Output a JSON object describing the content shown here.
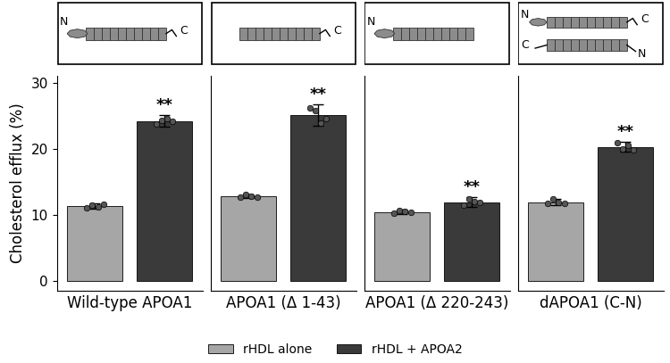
{
  "chart_data": [
    {
      "type": "bar",
      "xlabel": "Wild-type APOA1",
      "ylabel": "Cholesterol efflux (%)",
      "categories": [
        null
      ],
      "ylim": [
        -1.5,
        31
      ],
      "yticks": [
        0,
        10,
        20,
        30
      ],
      "tick_labels": "y",
      "legend": "lower center",
      "schematic": [
        [
          "N",
          "C"
        ]
      ],
      "series": [
        {
          "name": "rHDL alone",
          "color": "#a6a6a6",
          "values": [
            11.3
          ],
          "errors": [
            0.4
          ],
          "points": [
            [
              11.0,
              11.5,
              11.2,
              11.6
            ]
          ]
        },
        {
          "name": "rHDL + APOA2",
          "color": "#3a3a3a",
          "values": [
            24.2
          ],
          "errors": [
            0.9
          ],
          "points": [
            [
              23.7,
              24.3,
              24.6,
              24.2
            ]
          ]
        }
      ],
      "annotations": [
        {
          "text": "**",
          "series": "rHDL + APOA2"
        }
      ]
    },
    {
      "type": "bar",
      "xlabel": "APOA1 (Δ 1-43)",
      "categories": [
        null
      ],
      "ylim": [
        -1.5,
        31
      ],
      "yticks": [
        0,
        10,
        20,
        30
      ],
      "tick_labels": false,
      "schematic": [
        [
          null,
          "C"
        ]
      ],
      "series": [
        {
          "name": "rHDL alone",
          "color": "#a6a6a6",
          "values": [
            12.8
          ],
          "errors": [
            0.3
          ],
          "points": [
            [
              12.6,
              13.1,
              12.8,
              12.7
            ]
          ]
        },
        {
          "name": "rHDL + APOA2",
          "color": "#3a3a3a",
          "values": [
            25.1
          ],
          "errors": [
            1.6
          ],
          "points": [
            [
              26.2,
              25.8,
              23.9,
              24.6
            ]
          ]
        }
      ],
      "annotations": [
        {
          "text": "**",
          "series": "rHDL + APOA2"
        }
      ]
    },
    {
      "type": "bar",
      "xlabel": "APOA1 (Δ 220-243)",
      "categories": [
        null
      ],
      "ylim": [
        -1.5,
        31
      ],
      "yticks": [
        0,
        10,
        20,
        30
      ],
      "tick_labels": false,
      "schematic": [
        [
          "N",
          null
        ]
      ],
      "series": [
        {
          "name": "rHDL alone",
          "color": "#a6a6a6",
          "values": [
            10.4
          ],
          "errors": [
            0.3
          ],
          "points": [
            [
              10.2,
              10.6,
              10.5,
              10.3
            ]
          ]
        },
        {
          "name": "rHDL + APOA2",
          "color": "#3a3a3a",
          "values": [
            11.9
          ],
          "errors": [
            0.7
          ],
          "points": [
            [
              11.4,
              12.4,
              12.0,
              11.8
            ]
          ]
        }
      ],
      "annotations": [
        {
          "text": "**",
          "series": "rHDL + APOA2"
        }
      ]
    },
    {
      "type": "bar",
      "xlabel": "dAPOA1 (C-N)",
      "categories": [
        null
      ],
      "ylim": [
        -1.5,
        31
      ],
      "yticks": [
        0,
        10,
        20,
        30
      ],
      "tick_labels": false,
      "schematic": [
        [
          "N",
          "C"
        ],
        [
          "C",
          "N"
        ]
      ],
      "series": [
        {
          "name": "rHDL alone",
          "color": "#a6a6a6",
          "values": [
            11.9
          ],
          "errors": [
            0.5
          ],
          "points": [
            [
              11.7,
              12.4,
              11.8,
              11.7
            ]
          ]
        },
        {
          "name": "rHDL + APOA2",
          "color": "#3a3a3a",
          "values": [
            20.3
          ],
          "errors": [
            0.7
          ],
          "points": [
            [
              20.9,
              20.0,
              20.5,
              19.8
            ]
          ]
        }
      ],
      "annotations": [
        {
          "text": "**",
          "series": "rHDL + APOA2"
        }
      ]
    }
  ]
}
